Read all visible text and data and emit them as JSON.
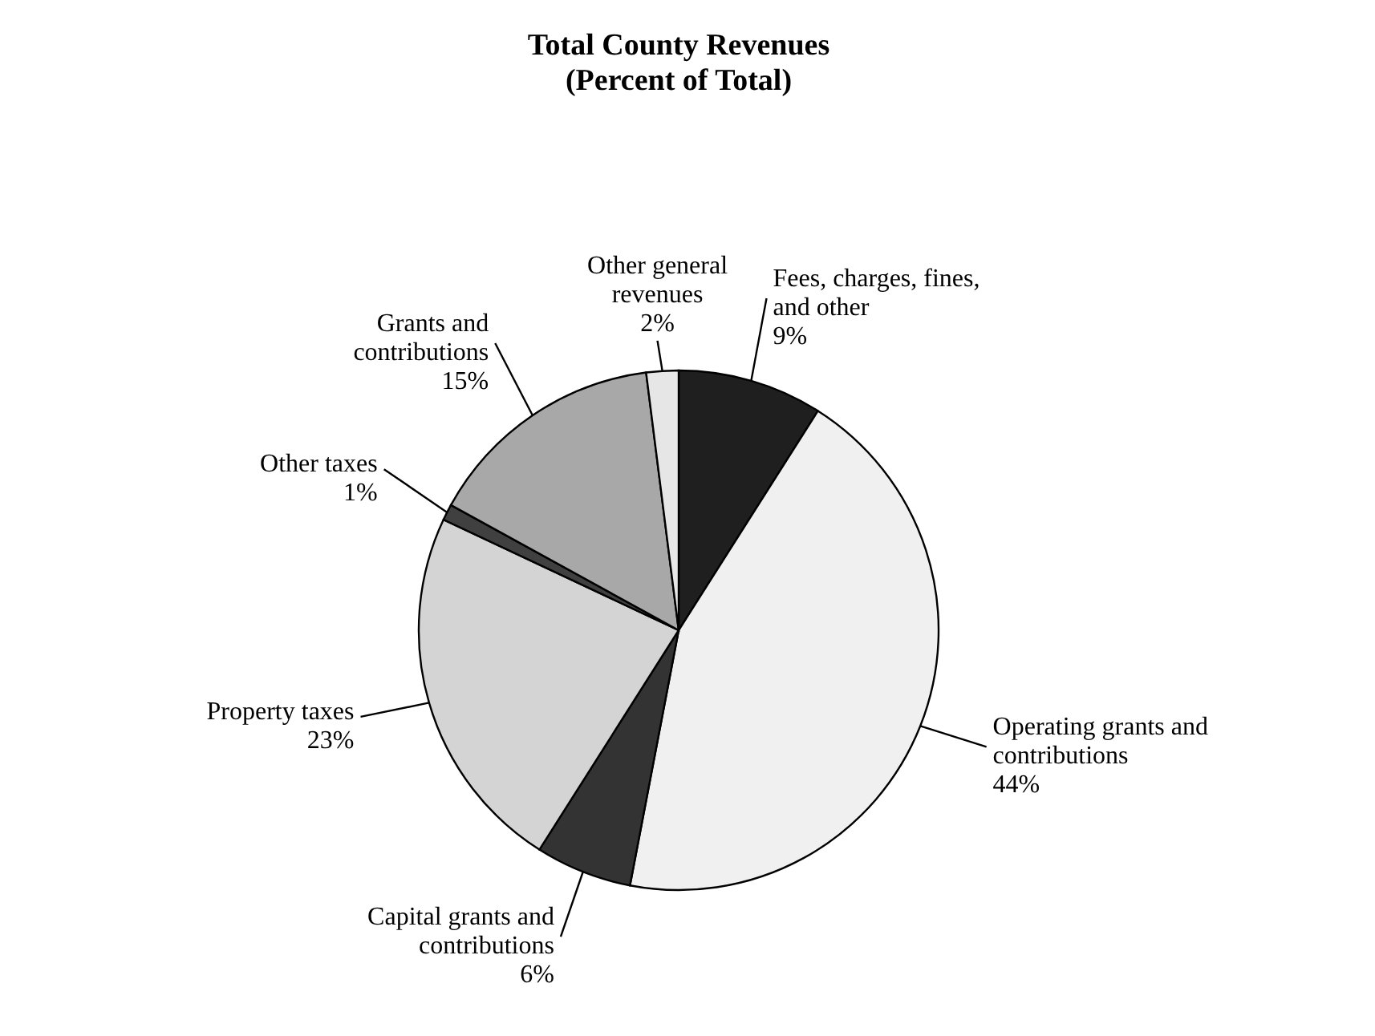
{
  "chart_data": {
    "type": "pie",
    "title": "Total County Revenues\n(Percent of Total)",
    "categories": [
      "Fees, charges, fines, and other",
      "Operating grants and contributions",
      "Capital grants and contributions",
      "Property taxes",
      "Other taxes",
      "Grants and contributions",
      "Other general revenues"
    ],
    "values": [
      9,
      44,
      6,
      23,
      1,
      15,
      2
    ],
    "value_labels": [
      "9%",
      "44%",
      "6%",
      "23%",
      "1%",
      "15%",
      "2%"
    ],
    "colors": [
      "#1f1f1f",
      "#f0f0f0",
      "#333333",
      "#d4d4d4",
      "#404040",
      "#a8a8a8",
      "#e6e6e6"
    ],
    "legend": false
  }
}
